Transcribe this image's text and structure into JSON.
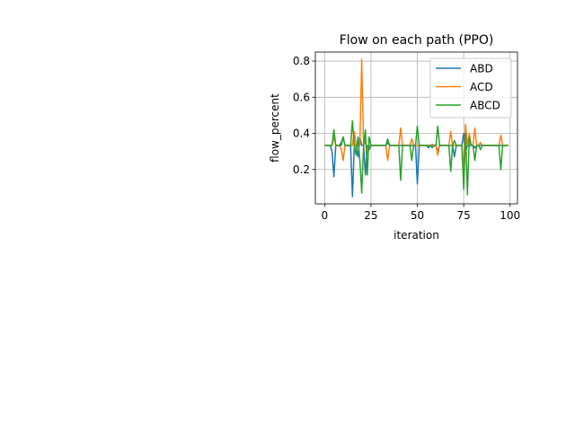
{
  "chart_data": {
    "type": "line",
    "title": "Flow on each path (PPO)",
    "xlabel": "iteration",
    "ylabel": "flow_percent",
    "xlim": [
      -5,
      104
    ],
    "ylim": [
      0.01,
      0.85
    ],
    "xticks": [
      0,
      25,
      50,
      75,
      100
    ],
    "yticks": [
      0.2,
      0.4,
      0.6,
      0.8
    ],
    "xtick_labels": [
      "0",
      "25",
      "50",
      "75",
      "100"
    ],
    "ytick_labels": [
      "0.2",
      "0.4",
      "0.6",
      "0.8"
    ],
    "grid": true,
    "legend_position": "top-right",
    "x": [
      0,
      1,
      2,
      3,
      4,
      5,
      6,
      7,
      8,
      9,
      10,
      11,
      12,
      13,
      14,
      15,
      16,
      17,
      18,
      19,
      20,
      21,
      22,
      23,
      24,
      25,
      26,
      27,
      28,
      29,
      30,
      31,
      32,
      33,
      34,
      35,
      36,
      37,
      38,
      39,
      40,
      41,
      42,
      43,
      44,
      45,
      46,
      47,
      48,
      49,
      50,
      51,
      52,
      53,
      54,
      55,
      56,
      57,
      58,
      59,
      60,
      61,
      62,
      63,
      64,
      65,
      66,
      67,
      68,
      69,
      70,
      71,
      72,
      73,
      74,
      75,
      76,
      77,
      78,
      79,
      80,
      81,
      82,
      83,
      84,
      85,
      86,
      87,
      88,
      89,
      90,
      91,
      92,
      93,
      94,
      95,
      96,
      97,
      98,
      99
    ],
    "series": [
      {
        "name": "ABD",
        "color": "#1f77b4",
        "values": [
          0.333,
          0.333,
          0.333,
          0.333,
          0.3,
          0.16,
          0.333,
          0.333,
          0.333,
          0.35,
          0.38,
          0.333,
          0.333,
          0.333,
          0.333,
          0.05,
          0.333,
          0.333,
          0.27,
          0.38,
          0.333,
          0.333,
          0.17,
          0.333,
          0.31,
          0.333,
          0.333,
          0.333,
          0.333,
          0.333,
          0.333,
          0.333,
          0.333,
          0.333,
          0.35,
          0.333,
          0.333,
          0.333,
          0.333,
          0.333,
          0.333,
          0.333,
          0.333,
          0.333,
          0.333,
          0.333,
          0.333,
          0.333,
          0.333,
          0.333,
          0.12,
          0.333,
          0.333,
          0.333,
          0.333,
          0.333,
          0.32,
          0.333,
          0.333,
          0.333,
          0.333,
          0.3,
          0.333,
          0.333,
          0.333,
          0.333,
          0.333,
          0.333,
          0.333,
          0.333,
          0.27,
          0.333,
          0.333,
          0.333,
          0.333,
          0.4,
          0.3,
          0.333,
          0.333,
          0.333,
          0.333,
          0.32,
          0.333,
          0.333,
          0.333,
          0.333,
          0.333,
          0.333,
          0.333,
          0.333,
          0.333,
          0.333,
          0.333,
          0.333,
          0.333,
          0.333,
          0.333,
          0.333,
          0.333,
          0.333
        ]
      },
      {
        "name": "ACD",
        "color": "#ff7f0e",
        "values": [
          0.333,
          0.333,
          0.333,
          0.333,
          0.333,
          0.38,
          0.333,
          0.333,
          0.333,
          0.31,
          0.25,
          0.333,
          0.333,
          0.333,
          0.333,
          0.333,
          0.41,
          0.333,
          0.35,
          0.333,
          0.81,
          0.333,
          0.36,
          0.3,
          0.333,
          0.333,
          0.333,
          0.333,
          0.333,
          0.333,
          0.333,
          0.333,
          0.333,
          0.333,
          0.25,
          0.333,
          0.333,
          0.333,
          0.333,
          0.333,
          0.333,
          0.43,
          0.333,
          0.333,
          0.333,
          0.333,
          0.333,
          0.37,
          0.333,
          0.333,
          0.333,
          0.333,
          0.333,
          0.333,
          0.333,
          0.333,
          0.333,
          0.333,
          0.34,
          0.333,
          0.333,
          0.28,
          0.333,
          0.333,
          0.333,
          0.333,
          0.333,
          0.333,
          0.41,
          0.333,
          0.333,
          0.333,
          0.333,
          0.333,
          0.333,
          0.2,
          0.45,
          0.333,
          0.4,
          0.333,
          0.333,
          0.43,
          0.333,
          0.333,
          0.35,
          0.333,
          0.333,
          0.333,
          0.333,
          0.333,
          0.333,
          0.333,
          0.333,
          0.333,
          0.333,
          0.39,
          0.333,
          0.333,
          0.333,
          0.333
        ]
      },
      {
        "name": "ABCD",
        "color": "#2ca02c",
        "values": [
          0.333,
          0.333,
          0.333,
          0.333,
          0.333,
          0.42,
          0.333,
          0.333,
          0.333,
          0.333,
          0.38,
          0.333,
          0.333,
          0.333,
          0.333,
          0.47,
          0.333,
          0.28,
          0.38,
          0.25,
          0.07,
          0.333,
          0.42,
          0.17,
          0.38,
          0.333,
          0.333,
          0.333,
          0.333,
          0.333,
          0.333,
          0.333,
          0.333,
          0.333,
          0.37,
          0.333,
          0.333,
          0.333,
          0.333,
          0.333,
          0.333,
          0.14,
          0.333,
          0.333,
          0.333,
          0.333,
          0.333,
          0.25,
          0.333,
          0.333,
          0.44,
          0.333,
          0.333,
          0.333,
          0.333,
          0.333,
          0.333,
          0.333,
          0.32,
          0.333,
          0.333,
          0.44,
          0.333,
          0.333,
          0.333,
          0.333,
          0.333,
          0.333,
          0.19,
          0.333,
          0.36,
          0.333,
          0.333,
          0.333,
          0.333,
          0.09,
          0.4,
          0.06,
          0.38,
          0.333,
          0.333,
          0.25,
          0.333,
          0.333,
          0.31,
          0.333,
          0.333,
          0.333,
          0.333,
          0.333,
          0.333,
          0.333,
          0.333,
          0.333,
          0.333,
          0.2,
          0.333,
          0.333,
          0.333,
          0.333
        ]
      }
    ]
  }
}
